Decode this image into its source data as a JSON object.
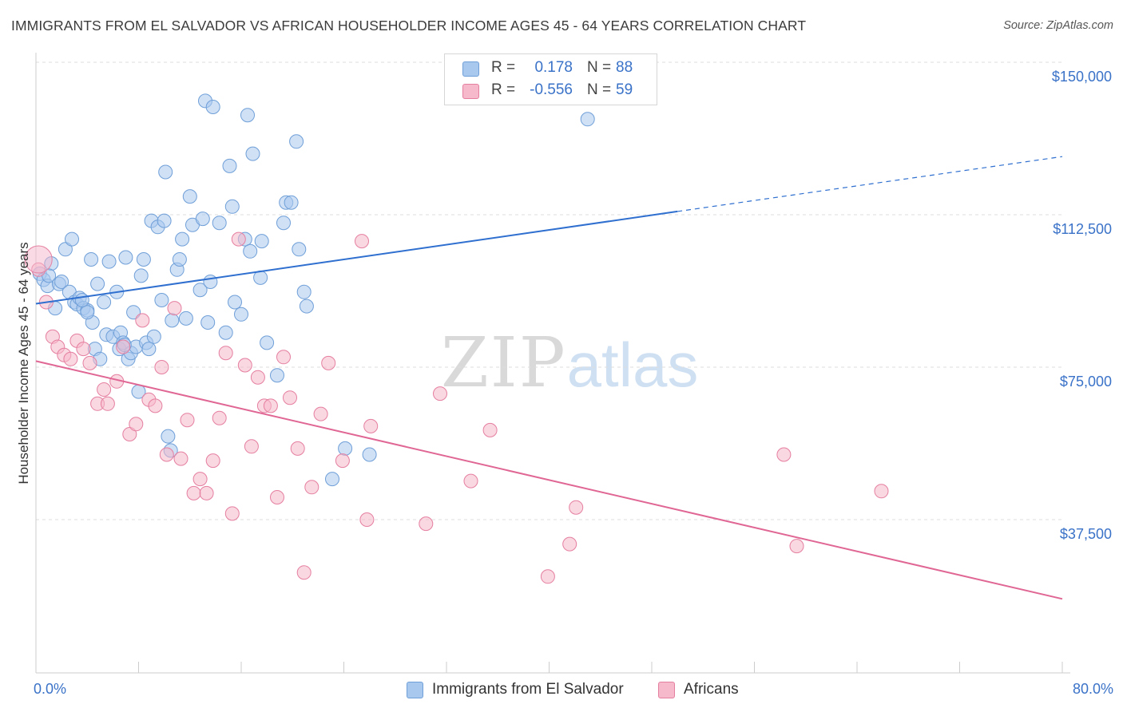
{
  "title": "IMMIGRANTS FROM EL SALVADOR VS AFRICAN HOUSEHOLDER INCOME AGES 45 - 64 YEARS CORRELATION CHART",
  "source": "Source: ZipAtlas.com",
  "watermark": {
    "zip": "ZIP",
    "atlas": "atlas"
  },
  "legend": {
    "r_label": "R =",
    "n_label": "N =",
    "rows": [
      {
        "r": "0.178",
        "n": "88",
        "color": "#a9c8ee"
      },
      {
        "r": "-0.556",
        "n": "59",
        "color": "#f6b8cb"
      }
    ]
  },
  "colors": {
    "blue_fill": "#a9c8ee",
    "blue_stroke": "#6f9fd8",
    "blue_line": "#2f6fcf",
    "pink_fill": "#f6b8cb",
    "pink_stroke": "#e57fa0",
    "pink_line": "#e06694",
    "axis_text": "#3a72c8",
    "grid": "#dddddd"
  },
  "chart_data": {
    "type": "scatter",
    "title": "IMMIGRANTS FROM EL SALVADOR VS AFRICAN HOUSEHOLDER INCOME AGES 45 - 64 YEARS CORRELATION CHART",
    "xlabel": "",
    "ylabel": "Householder Income Ages 45 - 64 years",
    "xlim": [
      0,
      80
    ],
    "ylim": [
      0,
      155000
    ],
    "x_tick_labels": [
      "0.0%",
      "80.0%"
    ],
    "y_ticks": [
      37500,
      75000,
      112500,
      150000
    ],
    "y_tick_labels": [
      "$37,500",
      "$75,000",
      "$112,500",
      "$150,000"
    ],
    "grid": true,
    "legend_position": "top-center",
    "series": [
      {
        "name": "Immigrants from El Salvador",
        "r": 0.178,
        "n": 88,
        "trend": {
          "x0": 0,
          "y0": 90600,
          "x1": 50,
          "y1": 113300,
          "x_dashed_end": 80,
          "y_dashed_end": 126800
        },
        "points": [
          [
            0.3,
            98000
          ],
          [
            0.6,
            96500
          ],
          [
            0.9,
            95000
          ],
          [
            1.2,
            100500
          ],
          [
            1.0,
            97500
          ],
          [
            1.5,
            89500
          ],
          [
            1.8,
            95500
          ],
          [
            2.0,
            96000
          ],
          [
            2.3,
            104000
          ],
          [
            2.6,
            93500
          ],
          [
            2.8,
            106500
          ],
          [
            3.0,
            91000
          ],
          [
            3.2,
            90500
          ],
          [
            3.4,
            92000
          ],
          [
            3.7,
            89500
          ],
          [
            4.0,
            89000
          ],
          [
            4.3,
            101500
          ],
          [
            4.4,
            86000
          ],
          [
            4.6,
            79500
          ],
          [
            4.8,
            95500
          ],
          [
            5.0,
            77000
          ],
          [
            5.3,
            91000
          ],
          [
            5.5,
            83000
          ],
          [
            5.7,
            101000
          ],
          [
            6.0,
            82500
          ],
          [
            6.3,
            93500
          ],
          [
            6.5,
            79500
          ],
          [
            6.6,
            83500
          ],
          [
            6.8,
            81000
          ],
          [
            7.0,
            102000
          ],
          [
            7.2,
            77000
          ],
          [
            7.4,
            78500
          ],
          [
            7.6,
            88500
          ],
          [
            7.8,
            80000
          ],
          [
            8.0,
            69000
          ],
          [
            8.2,
            97500
          ],
          [
            8.4,
            101500
          ],
          [
            8.6,
            81000
          ],
          [
            8.8,
            79500
          ],
          [
            9.0,
            111000
          ],
          [
            9.2,
            82500
          ],
          [
            9.5,
            109500
          ],
          [
            9.8,
            91500
          ],
          [
            10.0,
            111000
          ],
          [
            10.1,
            123000
          ],
          [
            10.3,
            58000
          ],
          [
            10.6,
            86500
          ],
          [
            11.0,
            99000
          ],
          [
            11.2,
            101500
          ],
          [
            11.4,
            106500
          ],
          [
            11.7,
            87000
          ],
          [
            12.0,
            117000
          ],
          [
            12.2,
            110000
          ],
          [
            12.8,
            94000
          ],
          [
            13.0,
            111500
          ],
          [
            13.2,
            140500
          ],
          [
            13.4,
            86000
          ],
          [
            13.6,
            96000
          ],
          [
            13.8,
            139000
          ],
          [
            14.3,
            110500
          ],
          [
            14.8,
            83500
          ],
          [
            15.1,
            124500
          ],
          [
            15.3,
            114500
          ],
          [
            15.5,
            91000
          ],
          [
            16.0,
            88000
          ],
          [
            16.3,
            106500
          ],
          [
            16.5,
            137000
          ],
          [
            16.7,
            103500
          ],
          [
            16.9,
            127500
          ],
          [
            17.5,
            97000
          ],
          [
            17.6,
            106000
          ],
          [
            18.0,
            81000
          ],
          [
            18.8,
            73000
          ],
          [
            19.3,
            110500
          ],
          [
            19.5,
            115500
          ],
          [
            19.9,
            115500
          ],
          [
            20.3,
            130500
          ],
          [
            20.5,
            104000
          ],
          [
            20.9,
            93500
          ],
          [
            21.1,
            90000
          ],
          [
            23.1,
            47500
          ],
          [
            24.1,
            55000
          ],
          [
            26.0,
            53500
          ],
          [
            43.0,
            136000
          ],
          [
            4.0,
            88500
          ],
          [
            3.6,
            91500
          ],
          [
            10.5,
            54500
          ],
          [
            6.9,
            80500
          ]
        ]
      },
      {
        "name": "Africans",
        "r": -0.556,
        "n": 59,
        "trend": {
          "x0": 0,
          "y0": 76500,
          "x1": 80,
          "y1": 18000
        },
        "points": [
          [
            0.2,
            99000
          ],
          [
            0.8,
            91000
          ],
          [
            1.3,
            82500
          ],
          [
            1.7,
            80000
          ],
          [
            2.2,
            78000
          ],
          [
            2.7,
            77000
          ],
          [
            3.2,
            81500
          ],
          [
            3.7,
            79500
          ],
          [
            4.2,
            76000
          ],
          [
            4.8,
            66000
          ],
          [
            5.3,
            69500
          ],
          [
            5.6,
            66000
          ],
          [
            6.3,
            71500
          ],
          [
            6.8,
            80000
          ],
          [
            7.3,
            58500
          ],
          [
            7.8,
            61000
          ],
          [
            8.3,
            86500
          ],
          [
            8.8,
            67000
          ],
          [
            9.3,
            65500
          ],
          [
            9.8,
            75000
          ],
          [
            10.2,
            53500
          ],
          [
            10.8,
            89500
          ],
          [
            11.3,
            52500
          ],
          [
            11.8,
            62000
          ],
          [
            12.3,
            44000
          ],
          [
            12.8,
            47500
          ],
          [
            13.3,
            44000
          ],
          [
            13.8,
            52000
          ],
          [
            14.3,
            62500
          ],
          [
            14.8,
            78500
          ],
          [
            15.3,
            39000
          ],
          [
            15.8,
            106500
          ],
          [
            16.3,
            75500
          ],
          [
            16.8,
            55500
          ],
          [
            17.3,
            72500
          ],
          [
            17.8,
            65500
          ],
          [
            18.3,
            65500
          ],
          [
            18.8,
            43000
          ],
          [
            19.3,
            77500
          ],
          [
            19.8,
            67500
          ],
          [
            20.4,
            55000
          ],
          [
            20.9,
            24500
          ],
          [
            21.5,
            45500
          ],
          [
            22.2,
            63500
          ],
          [
            22.8,
            76000
          ],
          [
            23.9,
            52000
          ],
          [
            25.4,
            106000
          ],
          [
            25.8,
            37500
          ],
          [
            26.1,
            60500
          ],
          [
            30.4,
            36500
          ],
          [
            31.5,
            68500
          ],
          [
            33.9,
            47000
          ],
          [
            35.4,
            59500
          ],
          [
            39.9,
            23500
          ],
          [
            41.6,
            31500
          ],
          [
            42.1,
            40500
          ],
          [
            58.3,
            53500
          ],
          [
            59.3,
            31000
          ],
          [
            65.9,
            44500
          ]
        ]
      }
    ]
  },
  "bottom_legend": {
    "items": [
      {
        "label": "Immigrants from El Salvador",
        "color": "#a9c8ee"
      },
      {
        "label": "Africans",
        "color": "#f6b8cb"
      }
    ]
  }
}
